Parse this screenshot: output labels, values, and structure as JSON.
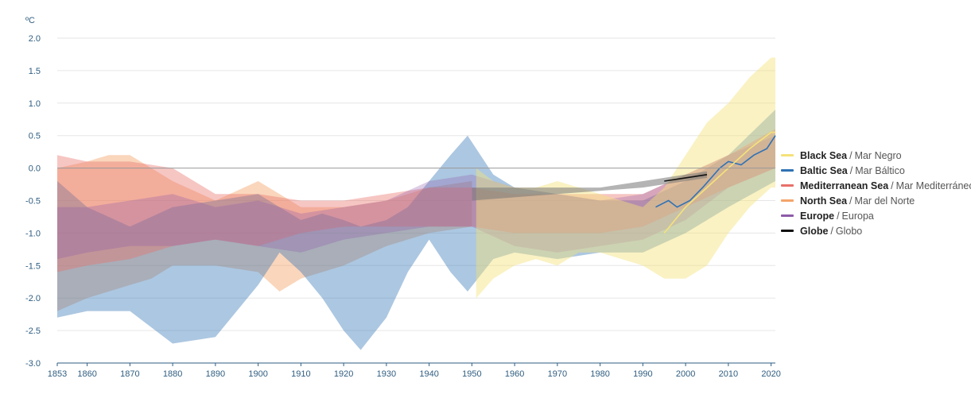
{
  "chart_data": {
    "type": "area",
    "unit_label": "ºC",
    "xlim": [
      1853,
      2021
    ],
    "ylim": [
      -3.0,
      2.0
    ],
    "y_ticks": [
      2.0,
      1.5,
      1.0,
      0.5,
      0.0,
      -0.5,
      -1.0,
      -1.5,
      -2.0,
      -2.5,
      -3.0
    ],
    "y_tick_labels": [
      "2.0",
      "1.5",
      "1.0",
      "0.5",
      "0.0",
      "-0.5",
      "-1.0",
      "-1.5",
      "-2.0",
      "-2.5",
      "-3.0"
    ],
    "x_ticks": [
      1853,
      1860,
      1870,
      1880,
      1890,
      1900,
      1910,
      1920,
      1930,
      1940,
      1950,
      1960,
      1970,
      1980,
      1990,
      2000,
      2010,
      2020
    ],
    "x_tick_labels": [
      "1853",
      "1860",
      "1870",
      "1880",
      "1890",
      "1900",
      "1910",
      "1920",
      "1930",
      "1940",
      "1950",
      "1960",
      "1970",
      "1980",
      "1990",
      "2000",
      "2010",
      "2020"
    ],
    "grid": true,
    "legend_position": "right",
    "series": [
      {
        "name": "Black Sea",
        "name_es": "Mar Negro",
        "color": "#f5e27a",
        "band_opacity": 0.45,
        "years": [
          1951,
          1955,
          1960,
          1965,
          1970,
          1975,
          1980,
          1985,
          1990,
          1995,
          2000,
          2005,
          2010,
          2015,
          2020,
          2021
        ],
        "upper": [
          0.0,
          -0.2,
          -0.3,
          -0.3,
          -0.2,
          -0.3,
          -0.4,
          -0.5,
          -0.6,
          -0.3,
          0.2,
          0.7,
          1.0,
          1.4,
          1.7,
          1.7
        ],
        "lower": [
          -2.0,
          -1.7,
          -1.5,
          -1.4,
          -1.5,
          -1.3,
          -1.3,
          -1.4,
          -1.5,
          -1.7,
          -1.7,
          -1.5,
          -1.0,
          -0.6,
          -0.3,
          -0.3
        ],
        "line_years": [
          1995,
          2000,
          2005,
          2010,
          2015,
          2020,
          2021
        ],
        "line": [
          -1.0,
          -0.6,
          -0.3,
          0.0,
          0.3,
          0.55,
          0.55
        ]
      },
      {
        "name": "Baltic Sea",
        "name_es": "Mar Báltico",
        "color": "#2f72b5",
        "band_opacity": 0.4,
        "years": [
          1853,
          1860,
          1870,
          1880,
          1890,
          1900,
          1905,
          1910,
          1915,
          1920,
          1924,
          1930,
          1935,
          1940,
          1945,
          1949,
          1955,
          1960,
          1970,
          1980,
          1990,
          2000,
          2010,
          2021
        ],
        "upper": [
          -0.2,
          -0.6,
          -0.9,
          -0.6,
          -0.5,
          -0.4,
          -0.6,
          -0.8,
          -0.7,
          -0.8,
          -0.9,
          -0.8,
          -0.6,
          -0.2,
          0.2,
          0.5,
          -0.1,
          -0.3,
          -0.4,
          -0.5,
          -0.5,
          -0.2,
          0.2,
          0.9
        ],
        "lower": [
          -2.3,
          -2.2,
          -2.2,
          -2.7,
          -2.6,
          -1.8,
          -1.3,
          -1.6,
          -2.0,
          -2.5,
          -2.8,
          -2.3,
          -1.6,
          -1.1,
          -1.6,
          -1.9,
          -1.4,
          -1.3,
          -1.4,
          -1.3,
          -1.3,
          -1.0,
          -0.6,
          -0.2
        ],
        "line_years": [
          1993,
          1996,
          1998,
          2001,
          2004,
          2008,
          2010,
          2013,
          2016,
          2019,
          2021
        ],
        "line": [
          -0.6,
          -0.5,
          -0.6,
          -0.5,
          -0.3,
          0.0,
          0.1,
          0.05,
          0.2,
          0.3,
          0.5
        ]
      },
      {
        "name": "Mediterranean Sea",
        "name_es": "Mar Mediterráneo",
        "color": "#e8706a",
        "band_opacity": 0.4,
        "years": [
          1853,
          1860,
          1870,
          1880,
          1890,
          1900,
          1910,
          1920,
          1930,
          1940,
          1950,
          1960,
          1970,
          1980,
          1990,
          2000,
          2010,
          2021
        ],
        "upper": [
          0.2,
          0.1,
          0.1,
          0.0,
          -0.4,
          -0.4,
          -0.5,
          -0.5,
          -0.4,
          -0.3,
          -0.3,
          -0.4,
          -0.4,
          -0.4,
          -0.4,
          -0.1,
          0.2,
          0.6
        ],
        "lower": [
          -1.6,
          -1.5,
          -1.4,
          -1.2,
          -1.1,
          -1.2,
          -1.0,
          -0.9,
          -0.9,
          -0.9,
          -0.9,
          -1.0,
          -1.0,
          -1.0,
          -0.9,
          -0.6,
          -0.3,
          0.0
        ],
        "line_years": [],
        "line": []
      },
      {
        "name": "North Sea",
        "name_es": "Mar del Norte",
        "color": "#f4a56a",
        "band_opacity": 0.45,
        "years": [
          1853,
          1860,
          1865,
          1870,
          1875,
          1880,
          1890,
          1900,
          1905,
          1910,
          1915,
          1920,
          1930,
          1940,
          1950
        ],
        "upper": [
          0.0,
          0.1,
          0.2,
          0.2,
          0.0,
          -0.2,
          -0.5,
          -0.2,
          -0.4,
          -0.6,
          -0.6,
          -0.6,
          -0.5,
          -0.3,
          -0.2
        ],
        "lower": [
          -2.2,
          -2.0,
          -1.9,
          -1.8,
          -1.7,
          -1.5,
          -1.5,
          -1.6,
          -1.9,
          -1.7,
          -1.6,
          -1.5,
          -1.2,
          -1.0,
          -0.9
        ],
        "line_years": [],
        "line": []
      },
      {
        "name": "Europe",
        "name_es": "Europa",
        "color": "#8e5aa8",
        "band_opacity": 0.3,
        "years": [
          1853,
          1860,
          1870,
          1880,
          1890,
          1900,
          1910,
          1920,
          1930,
          1940,
          1950,
          1960,
          1970,
          1980,
          1990,
          2000,
          2010,
          2021
        ],
        "upper": [
          -0.6,
          -0.6,
          -0.5,
          -0.4,
          -0.6,
          -0.5,
          -0.7,
          -0.6,
          -0.5,
          -0.2,
          -0.1,
          -0.3,
          -0.4,
          -0.5,
          -0.4,
          -0.1,
          0.2,
          0.5
        ],
        "lower": [
          -1.4,
          -1.3,
          -1.2,
          -1.2,
          -1.1,
          -1.2,
          -1.3,
          -1.1,
          -1.0,
          -0.9,
          -0.9,
          -1.2,
          -1.3,
          -1.2,
          -1.1,
          -0.8,
          -0.3,
          0.0
        ],
        "line_years": [],
        "line": []
      },
      {
        "name": "Globe",
        "name_es": "Globo",
        "color": "#111111",
        "band_color": "#777777",
        "band_opacity": 0.55,
        "years": [
          1950,
          1960,
          1970,
          1980,
          1990,
          1995,
          2000,
          2005
        ],
        "upper": [
          -0.3,
          -0.3,
          -0.3,
          -0.3,
          -0.2,
          -0.15,
          -0.1,
          -0.05
        ],
        "lower": [
          -0.5,
          -0.45,
          -0.4,
          -0.35,
          -0.3,
          -0.25,
          -0.2,
          -0.15
        ],
        "line_years": [
          1995,
          2000,
          2005
        ],
        "line": [
          -0.2,
          -0.15,
          -0.1
        ]
      }
    ]
  }
}
